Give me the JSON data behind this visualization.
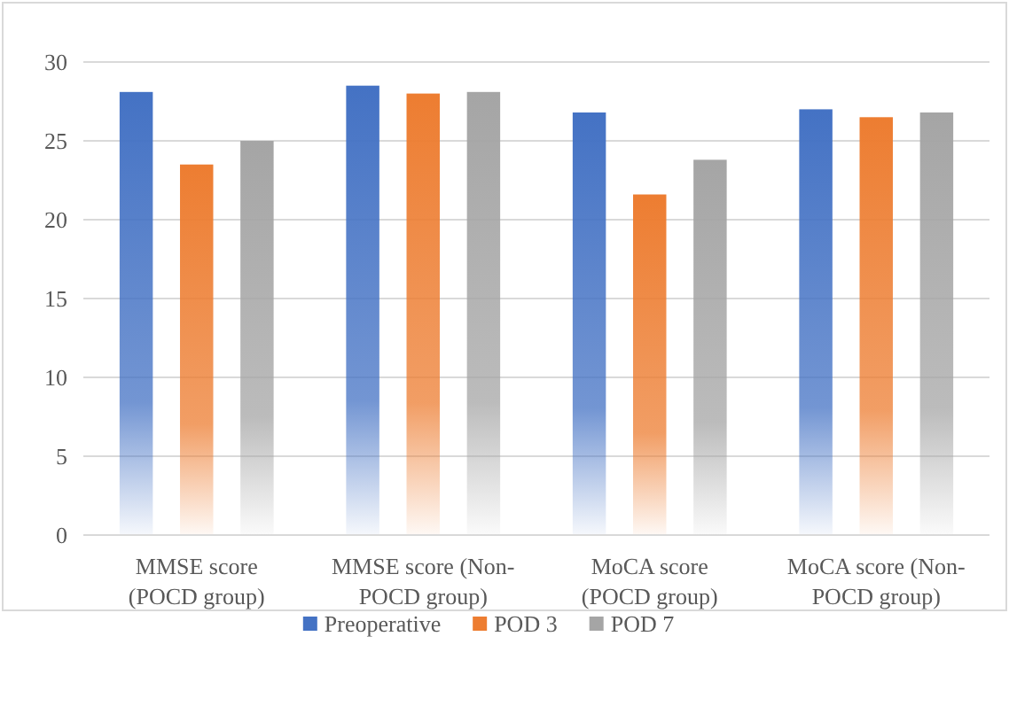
{
  "chart_data": {
    "type": "bar",
    "categories": [
      "MMSE score (POCD group)",
      "MMSE score (Non-POCD group)",
      "MoCA score (POCD group)",
      "MoCA score (Non-POCD group)"
    ],
    "series": [
      {
        "name": "Preoperative",
        "color": "#4472c4",
        "values": [
          28.1,
          28.5,
          26.8,
          27.0
        ]
      },
      {
        "name": "POD 3",
        "color": "#ed7d31",
        "values": [
          23.5,
          28.0,
          21.6,
          26.5
        ]
      },
      {
        "name": "POD 7",
        "color": "#a5a5a5",
        "values": [
          25.0,
          28.1,
          23.8,
          26.8
        ]
      }
    ],
    "ylim": [
      0,
      30
    ],
    "yticks": [
      0,
      5,
      10,
      15,
      20,
      25,
      30
    ],
    "grid": "y",
    "legend": "bottom"
  }
}
